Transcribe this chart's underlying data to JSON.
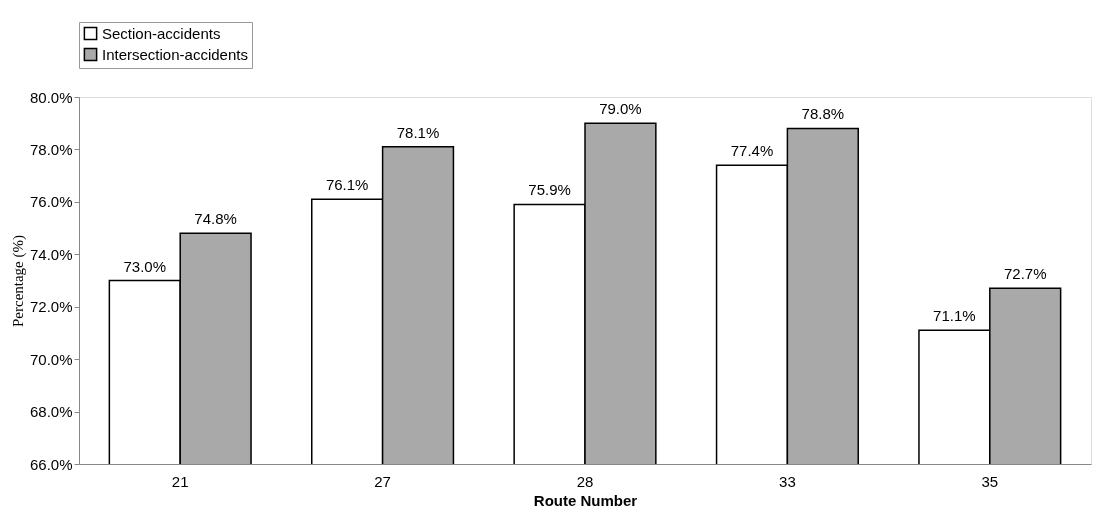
{
  "chart_data": {
    "type": "bar",
    "xlabel": "Route Number",
    "ylabel": "Percentage (%)",
    "categories": [
      "21",
      "27",
      "28",
      "33",
      "35"
    ],
    "series": [
      {
        "name": "Section-accidents",
        "color": "#ffffff",
        "values": [
          73.0,
          76.1,
          75.9,
          77.4,
          71.1
        ],
        "value_labels": [
          "73.0%",
          "76.1%",
          "75.9%",
          "77.4%",
          "71.1%"
        ]
      },
      {
        "name": "Intersection-accidents",
        "color": "#a9a9a9",
        "values": [
          74.8,
          78.1,
          79.0,
          78.8,
          72.7
        ],
        "value_labels": [
          "74.8%",
          "78.1%",
          "79.0%",
          "78.8%",
          "72.7%"
        ]
      }
    ],
    "ylim": [
      66,
      80
    ],
    "yticks": [
      {
        "value": 66,
        "label": "66.0%"
      },
      {
        "value": 68,
        "label": "68.0%"
      },
      {
        "value": 70,
        "label": "70.0%"
      },
      {
        "value": 72,
        "label": "72.0%"
      },
      {
        "value": 74,
        "label": "74.0%"
      },
      {
        "value": 76,
        "label": "76.0%"
      },
      {
        "value": 78,
        "label": "78.0%"
      },
      {
        "value": 80,
        "label": "80.0%"
      }
    ],
    "legend": "top left",
    "grid": false
  }
}
